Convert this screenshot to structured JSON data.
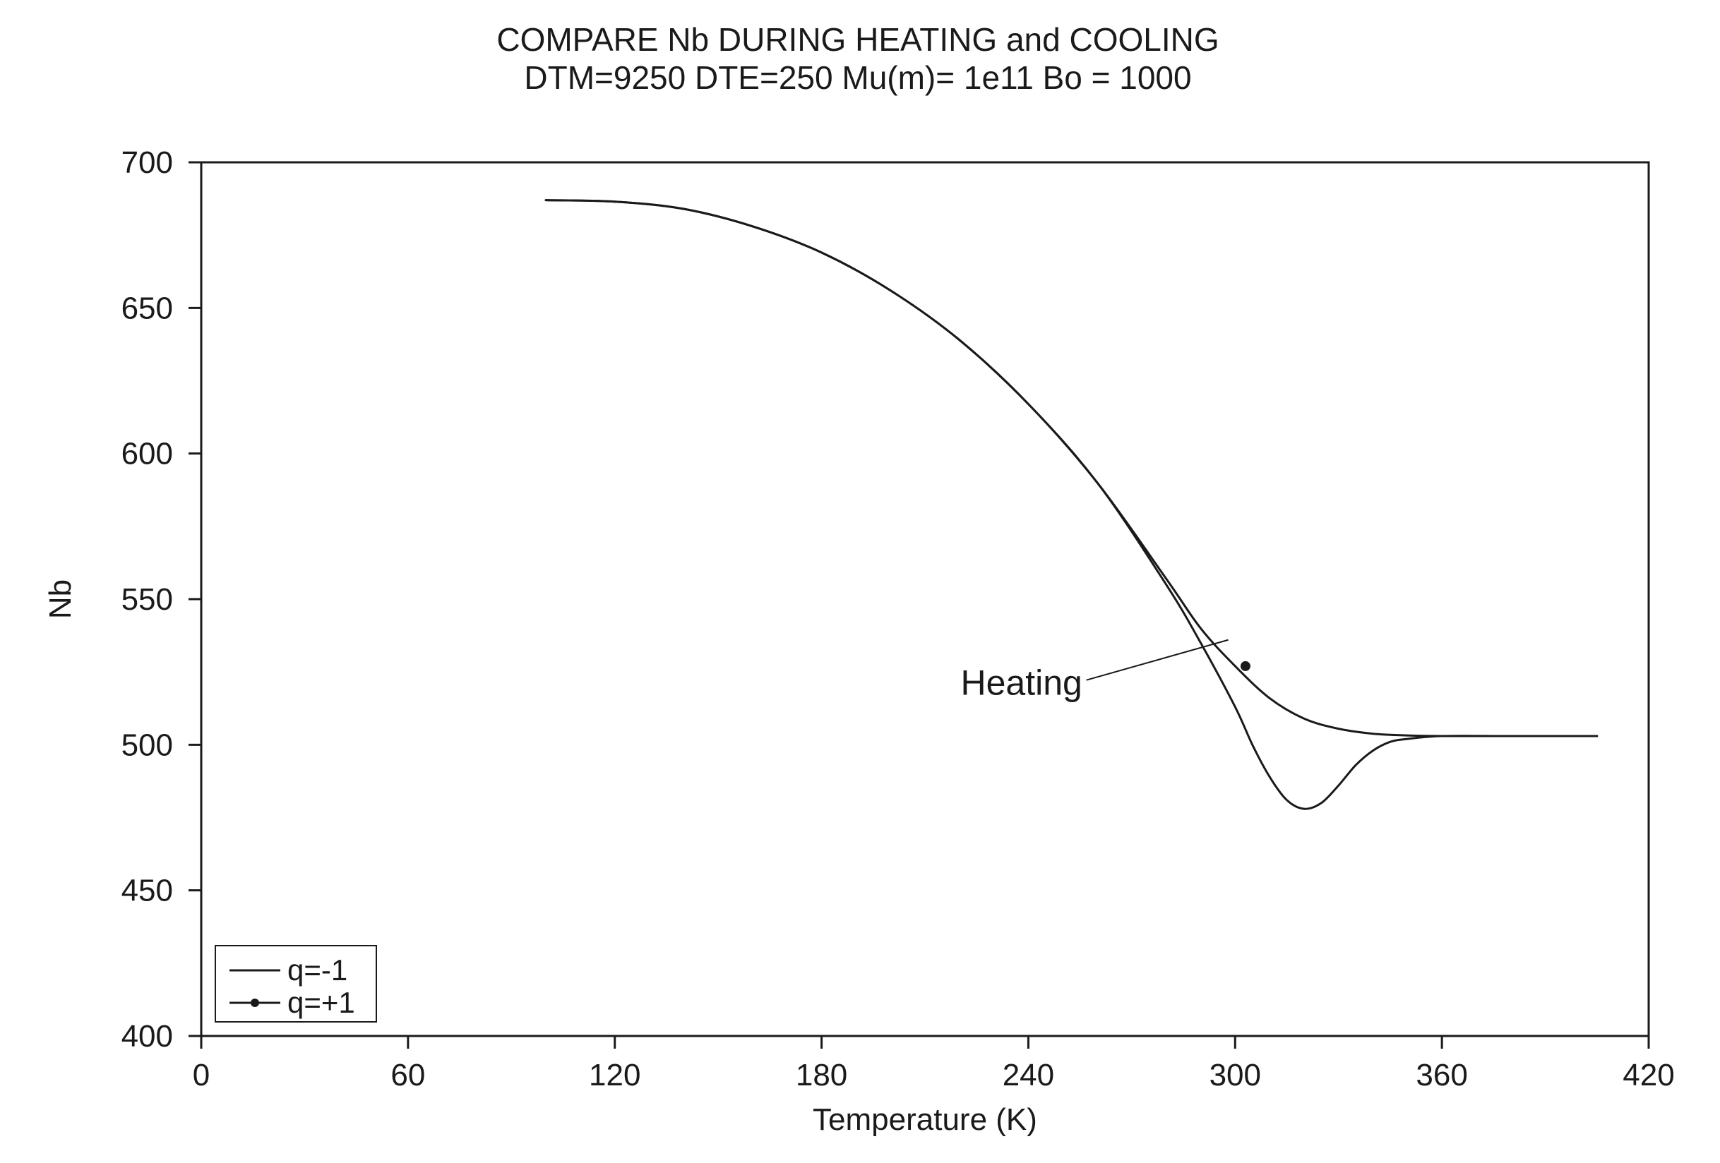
{
  "chart_data": {
    "type": "line",
    "title": "COMPARE Nb DURING HEATING and COOLING",
    "subtitle": "DTM=9250 DTE=250 Mu(m)= 1e11 Bo = 1000",
    "xlabel": "Temperature (K)",
    "ylabel": "Nb",
    "xlim": [
      0,
      420
    ],
    "ylim": [
      400,
      700
    ],
    "xticks": [
      0,
      60,
      120,
      180,
      240,
      300,
      360,
      420
    ],
    "yticks": [
      400,
      450,
      500,
      550,
      600,
      650,
      700
    ],
    "grid": false,
    "legend_position": "bottom-left",
    "series": [
      {
        "name": "q=-1",
        "marker": "none",
        "x": [
          100,
          120,
          140,
          160,
          180,
          200,
          220,
          240,
          260,
          280,
          290,
          300,
          310,
          320,
          330,
          340,
          350,
          360,
          380,
          405
        ],
        "y": [
          687,
          686.5,
          684,
          678,
          669,
          656,
          639,
          617,
          590,
          557,
          540,
          527,
          516,
          509,
          505.5,
          503.8,
          503.2,
          503,
          503,
          503
        ]
      },
      {
        "name": "q=+1",
        "marker": "dot",
        "x": [
          100,
          120,
          140,
          160,
          180,
          200,
          220,
          240,
          260,
          280,
          290,
          300,
          305,
          310,
          315,
          320,
          325,
          330,
          335,
          340,
          345,
          350,
          360,
          380,
          405
        ],
        "y": [
          687,
          686.5,
          684,
          678,
          669,
          656,
          639,
          617,
          590,
          555,
          535,
          513,
          500,
          489,
          481,
          478,
          480,
          486,
          493,
          498,
          501,
          502,
          503,
          503,
          503
        ]
      }
    ],
    "annotations": [
      {
        "text": "Heating",
        "x": 238,
        "y": 521,
        "arrow_to": [
          298,
          536
        ]
      }
    ],
    "marker_points": [
      {
        "series": "q=+1",
        "x": 303,
        "y": 527
      }
    ]
  },
  "colors": {
    "line": "#1a1a1a",
    "axis": "#1a1a1a",
    "background": "#ffffff"
  }
}
